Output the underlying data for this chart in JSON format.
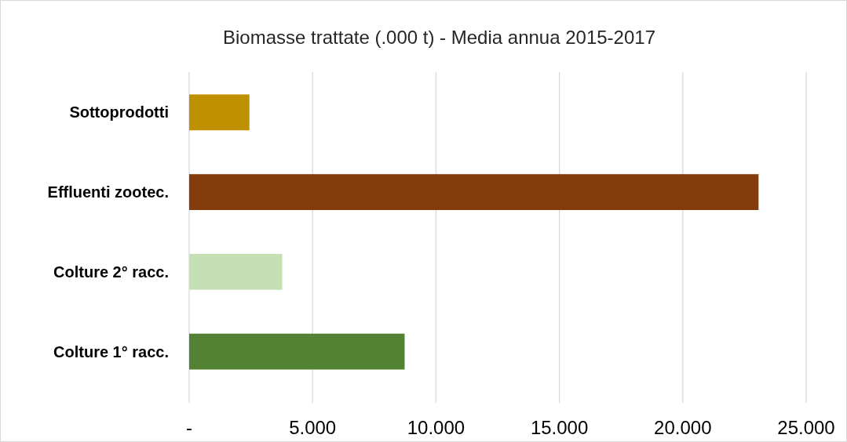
{
  "chart_data": {
    "type": "bar",
    "orientation": "horizontal",
    "title": "Biomasse trattate (.000 t) - Media annua 2015-2017",
    "categories": [
      "Sottoprodotti",
      "Effluenti zootec.",
      "Colture 2° racc.",
      "Colture 1° racc."
    ],
    "values": [
      2440,
      23070,
      3770,
      8730
    ],
    "colors": [
      "#bf9000",
      "#843c0c",
      "#c5e0b4",
      "#548235"
    ],
    "xlim": [
      0,
      25000
    ],
    "xticks": [
      {
        "value": 0,
        "label": "-"
      },
      {
        "value": 5000,
        "label": "5.000"
      },
      {
        "value": 10000,
        "label": "10.000"
      },
      {
        "value": 15000,
        "label": "15.000"
      },
      {
        "value": 20000,
        "label": "20.000"
      },
      {
        "value": 25000,
        "label": "25.000"
      }
    ],
    "grid": "x"
  }
}
